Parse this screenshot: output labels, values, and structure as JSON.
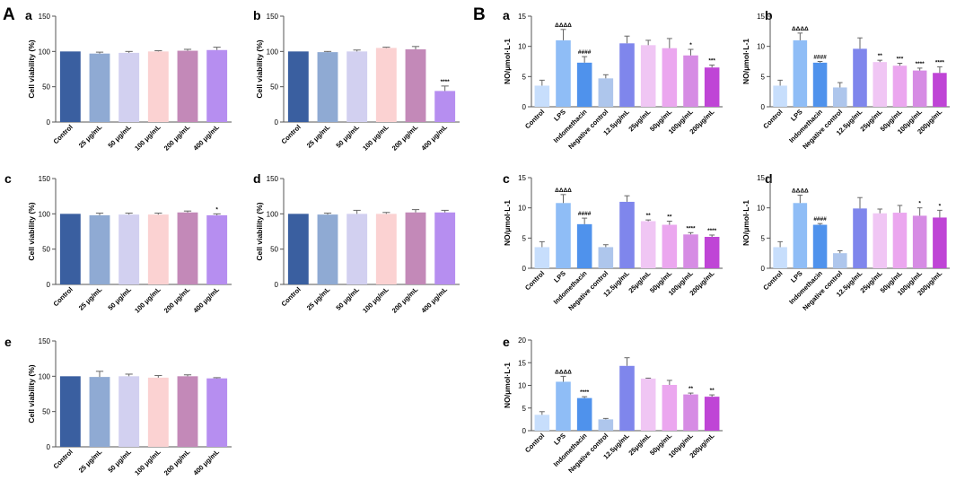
{
  "figure": {
    "panel_labels": [
      "A",
      "B"
    ]
  },
  "colors": {
    "A": [
      "#3a5fa0",
      "#8faad3",
      "#d2d0f0",
      "#fbd2d2",
      "#c389b8",
      "#b68ef0"
    ],
    "B": [
      "#c7defc",
      "#8fbdf6",
      "#4f92ec",
      "#aec6ec",
      "#7f86ec",
      "#f0c6f4",
      "#eba7ef",
      "#d68ce4",
      "#bf45d6"
    ],
    "axis": "#555555",
    "error_bar": "#666666"
  },
  "chart_data": [
    {
      "id": "A-a",
      "group": "A",
      "label": "a",
      "type": "bar",
      "categories": [
        "Control",
        "25 μg/mL",
        "50 μg/mL",
        "100 μg/mL",
        "200 μg/mL",
        "400 μg/mL"
      ],
      "values": [
        100,
        97,
        98,
        100,
        101,
        102
      ],
      "errors": [
        0,
        2,
        2,
        1,
        2,
        4
      ],
      "annotations": [
        "",
        "",
        "",
        "",
        "",
        ""
      ],
      "ylabel": "Cell viability (%)",
      "ylim": [
        0,
        150
      ],
      "yticks": [
        0,
        50,
        100,
        150
      ]
    },
    {
      "id": "A-b",
      "group": "A",
      "label": "b",
      "type": "bar",
      "categories": [
        "Control",
        "25 μg/mL",
        "50 μg/mL",
        "100 μg/mL",
        "200 μg/mL",
        "400 μg/mL"
      ],
      "values": [
        100,
        99,
        100,
        105,
        103,
        44
      ],
      "errors": [
        0,
        1,
        2,
        1,
        4,
        7
      ],
      "annotations": [
        "",
        "",
        "",
        "",
        "",
        "****"
      ],
      "ylabel": "Cell viability (%)",
      "ylim": [
        0,
        150
      ],
      "yticks": [
        0,
        50,
        100,
        150
      ]
    },
    {
      "id": "A-c",
      "group": "A",
      "label": "c",
      "type": "bar",
      "categories": [
        "Control",
        "25 μg/mL",
        "50 μg/mL",
        "100 μg/mL",
        "200 μg/mL",
        "400 μg/mL"
      ],
      "values": [
        100,
        98,
        99,
        99,
        102,
        98
      ],
      "errors": [
        0,
        3,
        2,
        2,
        2,
        2
      ],
      "annotations": [
        "",
        "",
        "",
        "",
        "",
        "*"
      ],
      "ylabel": "Cell viability (%)",
      "ylim": [
        0,
        150
      ],
      "yticks": [
        0,
        50,
        100,
        150
      ]
    },
    {
      "id": "A-d",
      "group": "A",
      "label": "d",
      "type": "bar",
      "categories": [
        "Control",
        "25 μg/mL",
        "50 μg/mL",
        "100 μg/mL",
        "200 μg/mL",
        "400 μg/mL"
      ],
      "values": [
        100,
        99,
        100,
        100,
        102,
        102
      ],
      "errors": [
        0,
        2,
        5,
        2,
        4,
        3
      ],
      "annotations": [
        "",
        "",
        "",
        "",
        "",
        ""
      ],
      "ylabel": "Cell viability (%)",
      "ylim": [
        0,
        150
      ],
      "yticks": [
        0,
        50,
        100,
        150
      ]
    },
    {
      "id": "A-e",
      "group": "A",
      "label": "e",
      "type": "bar",
      "categories": [
        "Control",
        "25 μg/mL",
        "50 μg/mL",
        "100 μg/mL",
        "200 μg/mL",
        "400 μg/mL"
      ],
      "values": [
        100,
        99,
        100,
        98,
        100,
        97
      ],
      "errors": [
        0,
        8,
        3,
        3,
        2,
        1
      ],
      "annotations": [
        "",
        "",
        "",
        "",
        "",
        ""
      ],
      "ylabel": "Cell viability (%)",
      "ylim": [
        0,
        150
      ],
      "yticks": [
        0,
        50,
        100,
        150
      ]
    },
    {
      "id": "B-a",
      "group": "B",
      "label": "a",
      "type": "bar",
      "categories": [
        "Control",
        "LPS",
        "Indomethacin",
        "Negative control",
        "12.5μg/mL",
        "25μg/mL",
        "50μg/mL",
        "100μg/mL",
        "200μg/mL"
      ],
      "values": [
        3.5,
        11.0,
        7.3,
        4.7,
        10.5,
        10.2,
        9.7,
        8.5,
        6.5
      ],
      "errors": [
        0.9,
        1.8,
        1.0,
        0.6,
        1.2,
        0.8,
        1.6,
        1.0,
        0.4
      ],
      "annotations": [
        "",
        "ΔΔΔΔ",
        "####",
        "",
        "",
        "",
        "",
        "*",
        "***"
      ],
      "ylabel": "NO/μmol·L-1",
      "ylim": [
        0,
        15
      ],
      "yticks": [
        0,
        5,
        10,
        15
      ]
    },
    {
      "id": "B-b",
      "group": "B",
      "label": "b",
      "type": "bar",
      "categories": [
        "Control",
        "LPS",
        "Indomethacin",
        "Negative control",
        "12.5μg/mL",
        "25μg/mL",
        "50μg/mL",
        "100μg/mL",
        "200μg/mL"
      ],
      "values": [
        3.5,
        11.0,
        7.3,
        3.2,
        9.6,
        7.4,
        6.8,
        6.0,
        5.6
      ],
      "errors": [
        0.9,
        1.2,
        0.2,
        0.8,
        1.8,
        0.3,
        0.4,
        0.4,
        1.0
      ],
      "annotations": [
        "",
        "ΔΔΔΔ",
        "####",
        "",
        "",
        "**",
        "***",
        "****",
        "****"
      ],
      "ylabel": "NO/μmol·L-1",
      "ylim": [
        0,
        15
      ],
      "yticks": [
        0,
        5,
        10,
        15
      ]
    },
    {
      "id": "B-c",
      "group": "B",
      "label": "c",
      "type": "bar",
      "categories": [
        "Control",
        "LPS",
        "Indomethacin",
        "Negative control",
        "12.5μg/mL",
        "25μg/mL",
        "50μg/mL",
        "100μg/mL",
        "200μg/mL"
      ],
      "values": [
        3.5,
        10.8,
        7.3,
        3.5,
        11.0,
        7.8,
        7.2,
        5.6,
        5.2
      ],
      "errors": [
        0.9,
        1.4,
        1.0,
        0.4,
        1.0,
        0.2,
        0.6,
        0.3,
        0.3
      ],
      "annotations": [
        "",
        "ΔΔΔΔ",
        "####",
        "",
        "",
        "**",
        "**",
        "****",
        "****"
      ],
      "ylabel": "NO/μmol·L-1",
      "ylim": [
        0,
        15
      ],
      "yticks": [
        0,
        5,
        10,
        15
      ]
    },
    {
      "id": "B-d",
      "group": "B",
      "label": "d",
      "type": "bar",
      "categories": [
        "Control",
        "LPS",
        "Indomethacin",
        "Negative control",
        "12.5μg/mL",
        "25μg/mL",
        "50μg/mL",
        "100μg/mL",
        "200μg/mL"
      ],
      "values": [
        3.5,
        10.8,
        7.2,
        2.5,
        9.9,
        9.1,
        9.2,
        8.7,
        8.4
      ],
      "errors": [
        0.9,
        1.3,
        0.2,
        0.4,
        1.8,
        0.7,
        1.2,
        1.3,
        1.2
      ],
      "annotations": [
        "",
        "ΔΔΔΔ",
        "####",
        "",
        "",
        "",
        "",
        "*",
        "*"
      ],
      "ylabel": "NO/μmol·L-1",
      "ylim": [
        0,
        15
      ],
      "yticks": [
        0,
        5,
        10,
        15
      ]
    },
    {
      "id": "B-e",
      "group": "B",
      "label": "e",
      "type": "bar",
      "categories": [
        "Control",
        "LPS",
        "Indomethacin",
        "Negative control",
        "12.5μg/mL",
        "25μg/mL",
        "50μg/mL",
        "100μg/mL",
        "200μg/mL"
      ],
      "values": [
        3.5,
        10.8,
        7.2,
        2.5,
        14.3,
        11.5,
        10.1,
        8.0,
        7.5
      ],
      "errors": [
        0.7,
        1.2,
        0.3,
        0.2,
        1.8,
        0.1,
        1.0,
        0.3,
        0.4
      ],
      "annotations": [
        "",
        "ΔΔΔΔ",
        "****",
        "",
        "",
        "",
        "",
        "**",
        "**"
      ],
      "ylabel": "NO/μmol·L-1",
      "ylim": [
        0,
        20
      ],
      "yticks": [
        0,
        5,
        10,
        15,
        20
      ]
    }
  ]
}
